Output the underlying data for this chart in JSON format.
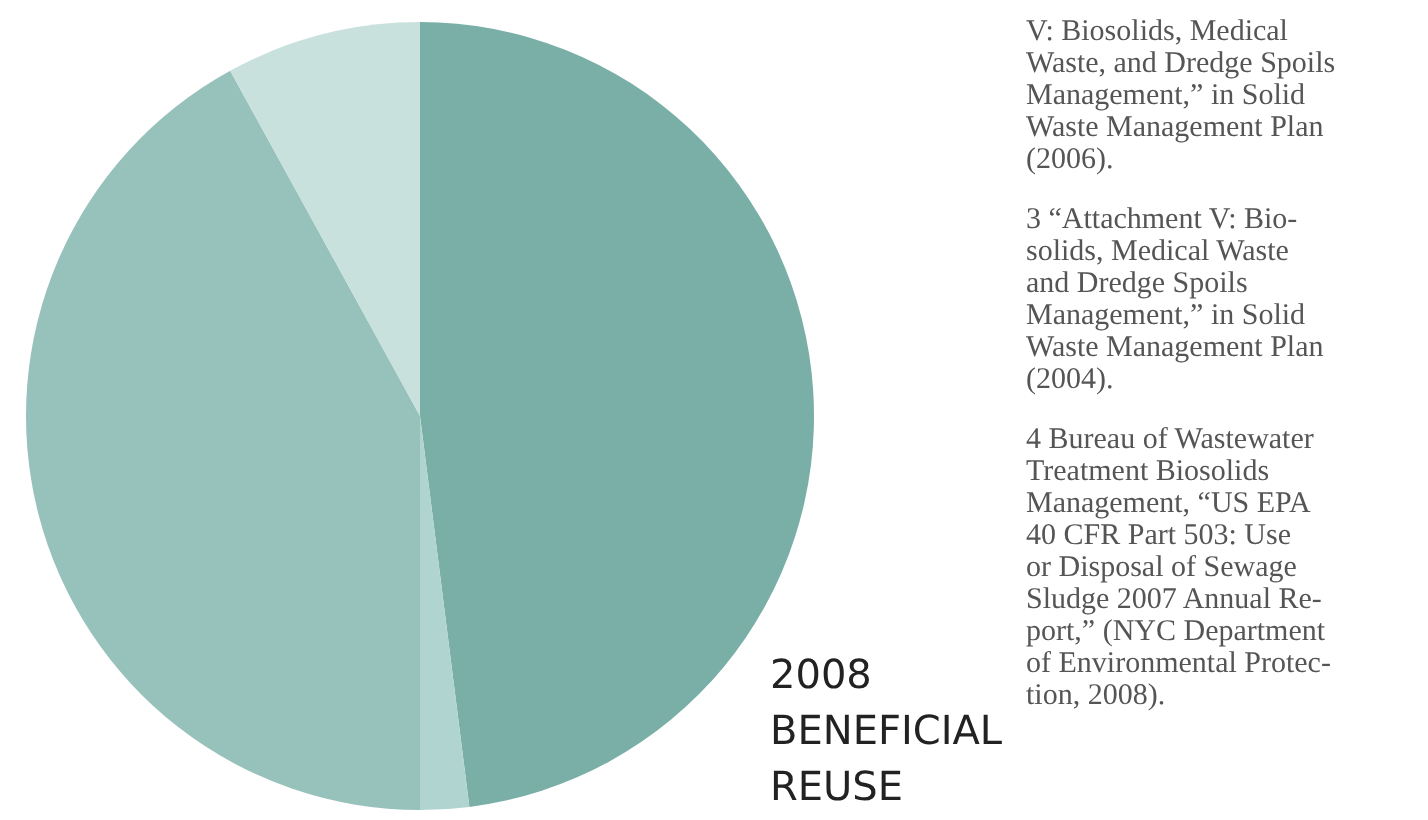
{
  "chart_data": {
    "type": "pie",
    "title": "2008\nBENEFICIAL\nREUSE",
    "categories": [
      null,
      null,
      null,
      null
    ],
    "values": [
      48,
      2,
      42,
      8
    ],
    "colors": [
      "#7aafa7",
      "#b0d4cf",
      "#97c1bb",
      "#c9e1dd"
    ],
    "annotations": [
      "V: Biosolids, Medical\nWaste, and Dredge Spoils\nManagement,” in Solid\nWaste Management Plan\n(2006).",
      "3 “Attachment V: Bio-\nsolids, Medical Waste\nand Dredge Spoils\nManagement,” in Solid\nWaste Management Plan\n(2004).",
      "4 Bureau of Wastewater\nTreatment Biosolids\nManagement, “US EPA\n40 CFR Part 503: Use\nor Disposal of Sewage\nSludge 2007 Annual Re-\nport,” (NYC Department\nof Environmental Protec-\ntion, 2008)."
    ]
  }
}
